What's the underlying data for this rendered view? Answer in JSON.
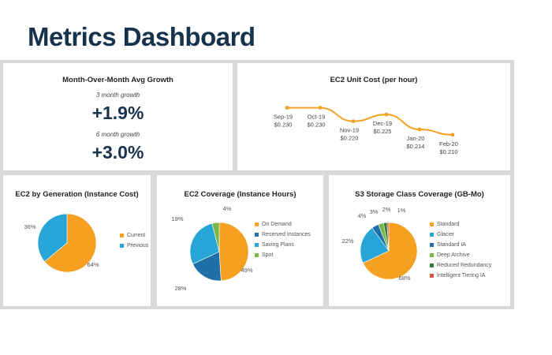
{
  "page": {
    "title": "Metrics Dashboard"
  },
  "growth": {
    "title": "Month-Over-Month Avg Growth",
    "kpis": [
      {
        "label": "3 month growth",
        "value": "+1.9%"
      },
      {
        "label": "6 month growth",
        "value": "+3.0%"
      }
    ]
  },
  "colors": {
    "orange": "#f5a021",
    "blue": "#26a5d6",
    "darkblue": "#1f6fa8",
    "green": "#7ab648",
    "darkgreen": "#2e7d32",
    "red": "#e5533d",
    "title": "#17324d"
  },
  "chart_data": [
    {
      "id": "ec2-unit-cost",
      "type": "line",
      "title": "EC2 Unit Cost (per hour)",
      "categories": [
        "Sep-19",
        "Oct-19",
        "Nov-19",
        "Dec-19",
        "Jan-20",
        "Feb-20"
      ],
      "values": [
        0.23,
        0.23,
        0.22,
        0.225,
        0.214,
        0.21
      ],
      "data_labels": [
        "$0.230",
        "$0.230",
        "$0.220",
        "$0.225",
        "$0.214",
        "$0.210"
      ],
      "ylim": [
        0.2,
        0.235
      ],
      "color": "#f5a021"
    },
    {
      "id": "ec2-generation",
      "type": "pie",
      "title": "EC2 by Generation (Instance Cost)",
      "labels": [
        "Current",
        "Previous"
      ],
      "values": [
        64,
        36
      ],
      "data_labels": [
        "64%",
        "36%"
      ],
      "colors": [
        "#f5a021",
        "#26a5d6"
      ],
      "legend": "right"
    },
    {
      "id": "ec2-coverage",
      "type": "pie",
      "title": "EC2 Coverage (Instance Hours)",
      "labels": [
        "On Demand",
        "Reserved Instances",
        "Saving Plans",
        "Spot"
      ],
      "values": [
        49,
        19,
        28,
        4
      ],
      "data_labels": [
        "49%",
        "19%",
        "28%",
        "4%"
      ],
      "colors": [
        "#f5a021",
        "#1f6fa8",
        "#26a5d6",
        "#7ab648"
      ],
      "legend": "right"
    },
    {
      "id": "s3-storage",
      "type": "pie",
      "title": "S3 Storage Class Coverage (GB-Mo)",
      "labels": [
        "Standard",
        "Glacier",
        "Standard IA",
        "Deep Archive",
        "Reduced Redundancy",
        "Intelligent Tiering IA"
      ],
      "values": [
        68,
        22,
        4,
        3,
        2,
        1
      ],
      "data_labels": [
        "68%",
        "22%",
        "4%",
        "3%",
        "2%",
        "1%"
      ],
      "colors": [
        "#f5a021",
        "#26a5d6",
        "#1f6fa8",
        "#7ab648",
        "#2e7d32",
        "#e5533d"
      ],
      "legend": "right"
    }
  ]
}
